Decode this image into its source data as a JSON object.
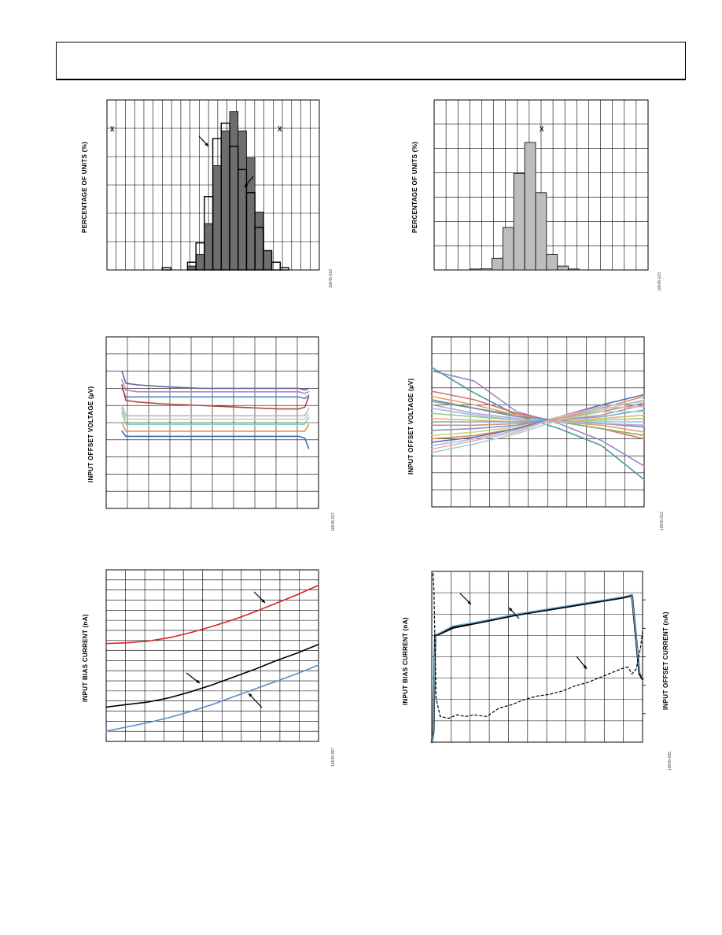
{
  "page": {
    "title": ""
  },
  "chart_data": [
    {
      "id": "p1",
      "type": "bar",
      "ylabel": "PERCENTAGE OF UNITS (%)",
      "code": "10645-019",
      "markers": [
        {
          "text": "X̅",
          "where": "left"
        },
        {
          "text": "X̅",
          "where": "right"
        }
      ],
      "series": [
        {
          "name": "",
          "style": "filled-dark",
          "values": [
            0,
            0,
            0,
            0,
            0,
            0,
            0,
            0,
            0,
            0.5,
            2,
            6,
            13.5,
            18,
            20.5,
            18,
            14.5,
            7.5,
            2.5,
            0,
            0,
            0,
            0,
            0,
            0
          ]
        },
        {
          "name": "",
          "style": "outline",
          "values": [
            0,
            0,
            0,
            0,
            0,
            0,
            0.3,
            0,
            0,
            1,
            3.5,
            9.5,
            17,
            19,
            16,
            13,
            10,
            5.5,
            2.5,
            1,
            0.3,
            0,
            0,
            0,
            0
          ]
        }
      ],
      "ylim": [
        0,
        22
      ],
      "grid": true
    },
    {
      "id": "p2",
      "type": "bar",
      "ylabel": "PERCENTAGE OF UNITS (%)",
      "code": "10645-023",
      "markers": [
        {
          "text": "X̅",
          "where": "center"
        }
      ],
      "series": [
        {
          "name": "",
          "style": "filled-light",
          "values": [
            0,
            0,
            0,
            0.2,
            0.3,
            3,
            11,
            25,
            33,
            20,
            4,
            1,
            0.2,
            0,
            0,
            0,
            0,
            0,
            0
          ]
        }
      ],
      "ylim": [
        0,
        44
      ],
      "grid": true
    },
    {
      "id": "p3",
      "type": "line",
      "ylabel": "INPUT OFFSET VOLTAGE (µV)",
      "code": "10645-027",
      "x": [
        0,
        0.02,
        0.08,
        0.2,
        0.4,
        0.6,
        0.8,
        0.9,
        0.93,
        0.95
      ],
      "series": [
        {
          "name": "",
          "color": "#6b5fa0",
          "values": [
            7,
            6.3,
            6.2,
            6.1,
            6.0,
            6.0,
            6.0,
            6.0,
            5.9,
            6.0
          ]
        },
        {
          "name": "",
          "color": "#c080c0",
          "values": [
            6.5,
            5.9,
            5.8,
            5.8,
            5.8,
            5.8,
            5.8,
            5.8,
            5.7,
            5.8
          ]
        },
        {
          "name": "",
          "color": "#4a8fc2",
          "values": [
            6.0,
            5.5,
            5.5,
            5.5,
            5.5,
            5.5,
            5.5,
            5.5,
            5.4,
            5.6
          ]
        },
        {
          "name": "",
          "color": "#b04a3a",
          "values": [
            6.2,
            5.3,
            5.2,
            5.1,
            5.0,
            4.9,
            4.8,
            4.8,
            4.9,
            5.5
          ]
        },
        {
          "name": "",
          "color": "#c7a8d8",
          "values": [
            5.0,
            4.4,
            4.4,
            4.4,
            4.4,
            4.4,
            4.4,
            4.4,
            4.4,
            4.8
          ]
        },
        {
          "name": "",
          "color": "#c8d890",
          "values": [
            4.8,
            4.2,
            4.2,
            4.2,
            4.2,
            4.2,
            4.2,
            4.2,
            4.2,
            4.5
          ]
        },
        {
          "name": "",
          "color": "#7fc8c8",
          "values": [
            4.6,
            3.9,
            3.9,
            3.9,
            3.9,
            3.9,
            3.9,
            3.9,
            3.9,
            4.3
          ]
        },
        {
          "name": "",
          "color": "#e8904a",
          "values": [
            4.0,
            3.5,
            3.5,
            3.5,
            3.5,
            3.5,
            3.5,
            3.5,
            3.5,
            3.9
          ]
        },
        {
          "name": "",
          "color": "#3a6ab0",
          "values": [
            3.5,
            3.2,
            3.2,
            3.2,
            3.2,
            3.2,
            3.2,
            3.2,
            3.1,
            2.5
          ]
        }
      ],
      "ylim": [
        -1,
        9
      ],
      "xlim": [
        0,
        1
      ],
      "grid": true
    },
    {
      "id": "p4",
      "type": "line",
      "ylabel": "INPUT OFFSET VOLTAGE (µV)",
      "code": "10645-012",
      "x": [
        0,
        0.2,
        0.4,
        0.6,
        0.8,
        1.0
      ],
      "series": [
        {
          "name": "",
          "color": "#4a9a9a",
          "values": [
            8.2,
            6.7,
            5.4,
            4.6,
            3.6,
            1.6
          ]
        },
        {
          "name": "",
          "color": "#9a88c8",
          "values": [
            8.0,
            7.4,
            5.6,
            4.9,
            3.9,
            2.4
          ]
        },
        {
          "name": "",
          "color": "#d07070",
          "values": [
            6.8,
            6.3,
            5.5,
            5.0,
            4.6,
            4.0
          ]
        },
        {
          "name": "",
          "color": "#88b060",
          "values": [
            6.2,
            5.8,
            5.4,
            5.0,
            4.6,
            4.2
          ]
        },
        {
          "name": "",
          "color": "#e8a060",
          "values": [
            6.5,
            6.0,
            5.4,
            5.0,
            4.8,
            4.4
          ]
        },
        {
          "name": "",
          "color": "#6a8ac8",
          "values": [
            6.3,
            5.8,
            5.3,
            5.1,
            4.9,
            4.7
          ]
        },
        {
          "name": "",
          "color": "#c0a0d0",
          "values": [
            6.0,
            5.5,
            5.2,
            5.0,
            4.9,
            4.8
          ]
        },
        {
          "name": "",
          "color": "#8cc8e0",
          "values": [
            5.8,
            5.4,
            5.1,
            5.0,
            5.0,
            5.0
          ]
        },
        {
          "name": "",
          "color": "#a0c890",
          "values": [
            5.5,
            5.3,
            5.1,
            5.0,
            5.1,
            5.2
          ]
        },
        {
          "name": "",
          "color": "#e0b870",
          "values": [
            5.2,
            5.1,
            5.0,
            5.0,
            5.2,
            5.4
          ]
        },
        {
          "name": "",
          "color": "#70b0d0",
          "values": [
            5.0,
            5.0,
            5.0,
            5.1,
            5.3,
            5.7
          ]
        },
        {
          "name": "",
          "color": "#d88888",
          "values": [
            4.8,
            4.8,
            4.9,
            5.1,
            5.4,
            6.0
          ]
        },
        {
          "name": "",
          "color": "#9090c0",
          "values": [
            4.5,
            4.6,
            4.8,
            5.2,
            5.6,
            6.1
          ]
        },
        {
          "name": "",
          "color": "#c0d880",
          "values": [
            4.2,
            4.4,
            4.7,
            5.2,
            5.7,
            6.3
          ]
        },
        {
          "name": "",
          "color": "#e89050",
          "values": [
            4.0,
            4.2,
            4.6,
            5.2,
            5.8,
            6.5
          ]
        },
        {
          "name": "",
          "color": "#5870b8",
          "values": [
            3.8,
            4.1,
            4.6,
            5.3,
            6.0,
            6.6
          ]
        },
        {
          "name": "",
          "color": "#b8b8e0",
          "values": [
            3.6,
            4.0,
            4.5,
            5.3,
            5.9,
            6.2
          ]
        },
        {
          "name": "",
          "color": "#e8b0b0",
          "values": [
            3.4,
            3.9,
            4.4,
            5.3,
            5.8,
            5.9
          ]
        },
        {
          "name": "",
          "color": "#a0d0d0",
          "values": [
            3.2,
            3.7,
            4.3,
            5.1,
            5.6,
            5.6
          ]
        }
      ],
      "ylim": [
        0,
        10
      ],
      "xlim": [
        0,
        1
      ],
      "grid": true
    },
    {
      "id": "p5",
      "type": "line",
      "ylabel": "INPUT BIAS CURRENT (nA)",
      "code": "10645-057",
      "x": [
        0,
        0.1,
        0.2,
        0.3,
        0.4,
        0.5,
        0.6,
        0.7,
        0.8,
        0.9,
        1.0
      ],
      "series": [
        {
          "name": "",
          "color": "#e02020",
          "values": [
            5.7,
            5.75,
            5.85,
            6.05,
            6.35,
            6.7,
            7.1,
            7.55,
            8.05,
            8.55,
            9.1
          ]
        },
        {
          "name": "",
          "color": "#000000",
          "values": [
            2.0,
            2.15,
            2.3,
            2.55,
            2.9,
            3.3,
            3.75,
            4.2,
            4.7,
            5.15,
            5.65
          ]
        },
        {
          "name": "",
          "color": "#5a8ac8",
          "values": [
            0.6,
            0.85,
            1.1,
            1.4,
            1.75,
            2.15,
            2.6,
            3.05,
            3.5,
            3.95,
            4.45
          ]
        }
      ],
      "ylim": [
        0,
        10
      ],
      "xlim": [
        0,
        1
      ],
      "grid": true
    },
    {
      "id": "p6",
      "type": "line",
      "ylabel": "INPUT BIAS CURRENT (nA)",
      "y2label": "INPUT OFFSET CURRENT (nA)",
      "code": "10645-035",
      "x": [
        0,
        0.008,
        0.016,
        0.03,
        0.1,
        0.2,
        0.3,
        0.4,
        0.5,
        0.6,
        0.7,
        0.8,
        0.9,
        0.92,
        0.95,
        0.985,
        1.0
      ],
      "series": [
        {
          "name": "",
          "color": "#000000",
          "width": 2.6,
          "values": [
            0,
            0.6,
            6.3,
            6.3,
            6.7,
            6.95,
            7.2,
            7.45,
            7.65,
            7.85,
            8.05,
            8.25,
            8.45,
            8.5,
            8.6,
            4.0,
            3.7
          ]
        },
        {
          "name": "",
          "color": "#6aaad0",
          "width": 1.4,
          "values": [
            0,
            0.6,
            6.3,
            6.35,
            6.8,
            7.0,
            7.25,
            7.5,
            7.7,
            7.9,
            8.1,
            8.3,
            8.5,
            8.55,
            8.65,
            4.1,
            3.8
          ]
        }
      ],
      "series_dashed": {
        "name": "",
        "color": "#000000",
        "x": [
          0.006,
          0.01,
          0.02,
          0.04,
          0.08,
          0.12,
          0.16,
          0.2,
          0.26,
          0.32,
          0.38,
          0.44,
          0.5,
          0.56,
          0.62,
          0.68,
          0.74,
          0.8,
          0.84,
          0.88,
          0.9,
          0.93,
          0.95,
          0.97,
          0.99,
          1.0
        ],
        "values": [
          9.9,
          9.0,
          2.6,
          1.5,
          1.4,
          1.6,
          1.5,
          1.6,
          1.5,
          2.0,
          2.2,
          2.5,
          2.7,
          2.8,
          3.0,
          3.3,
          3.5,
          3.8,
          4.0,
          4.2,
          4.3,
          4.4,
          4.0,
          4.3,
          5.5,
          6.5
        ]
      },
      "ylim": [
        0,
        10
      ],
      "xlim": [
        0,
        1
      ],
      "grid": true
    }
  ]
}
